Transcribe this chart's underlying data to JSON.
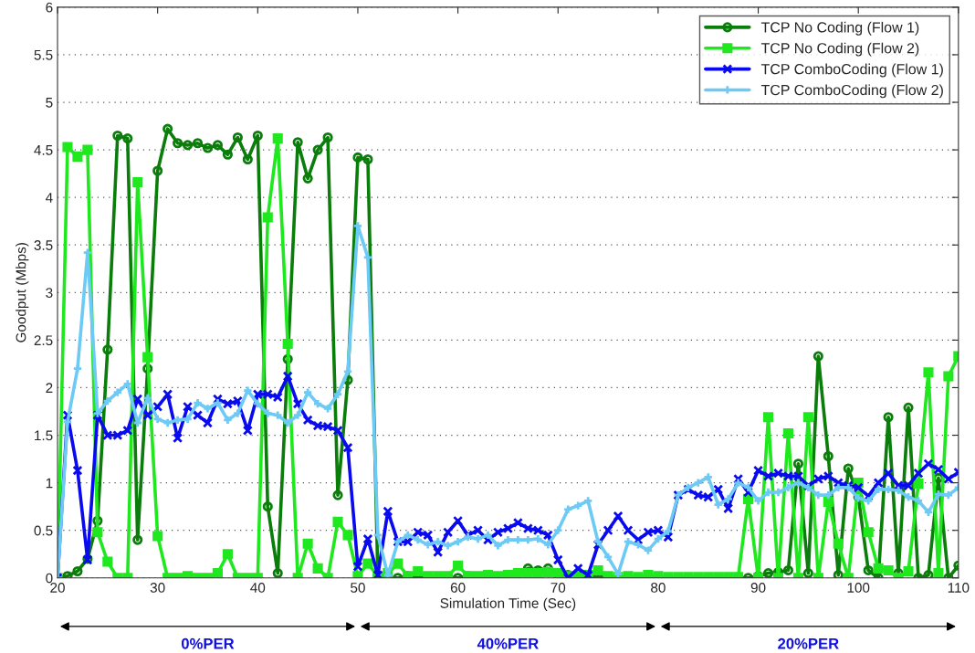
{
  "chart_data": {
    "type": "line",
    "xlabel": "Simulation Time (Sec)",
    "ylabel": "Goodput (Mbps)",
    "x": [
      20,
      21,
      22,
      23,
      24,
      25,
      26,
      27,
      28,
      29,
      30,
      31,
      32,
      33,
      34,
      35,
      36,
      37,
      38,
      39,
      40,
      41,
      42,
      43,
      44,
      45,
      46,
      47,
      48,
      49,
      50,
      51,
      52,
      53,
      54,
      55,
      56,
      57,
      58,
      59,
      60,
      61,
      62,
      63,
      64,
      65,
      66,
      67,
      68,
      69,
      70,
      71,
      72,
      73,
      74,
      75,
      76,
      77,
      78,
      79,
      80,
      81,
      82,
      83,
      84,
      85,
      86,
      87,
      88,
      89,
      90,
      91,
      92,
      93,
      94,
      95,
      96,
      97,
      98,
      99,
      100,
      101,
      102,
      103,
      104,
      105,
      106,
      107,
      108,
      109,
      110
    ],
    "series": [
      {
        "name": "TCP No Coding (Flow 1)",
        "color": "#0b7d0b",
        "marker": "circle",
        "values": [
          0,
          0.02,
          0.07,
          0.2,
          0.6,
          2.4,
          4.65,
          4.62,
          0.4,
          2.2,
          4.28,
          4.72,
          4.57,
          4.55,
          4.57,
          4.52,
          4.55,
          4.45,
          4.63,
          4.4,
          4.65,
          0.75,
          0.05,
          2.3,
          4.58,
          4.2,
          4.5,
          4.63,
          0.87,
          2.08,
          4.42,
          4.4,
          0.02,
          0,
          0,
          0.02,
          0,
          0.01,
          0,
          0.01,
          0,
          0.02,
          0,
          0,
          0.01,
          0.02,
          0.05,
          0.1,
          0.08,
          0.1,
          0.02,
          0.03,
          0.01,
          0,
          0.01,
          0,
          0,
          0,
          0,
          0.02,
          0,
          0,
          0,
          0,
          0,
          0,
          0,
          0,
          0,
          0,
          0.02,
          0.05,
          0.06,
          0.08,
          1.2,
          0.05,
          2.33,
          1.28,
          0.03,
          1.15,
          0.85,
          0.08,
          0,
          1.69,
          0.05,
          1.79,
          0,
          0.03,
          1.05,
          0,
          0.13
        ]
      },
      {
        "name": "TCP No Coding (Flow 2)",
        "color": "#1fe81f",
        "marker": "square",
        "values": [
          0,
          4.53,
          4.43,
          4.5,
          0.48,
          0.17,
          0,
          0,
          4.16,
          2.32,
          0.44,
          0,
          0,
          0.02,
          0,
          0,
          0.05,
          0.25,
          0,
          0,
          0,
          3.79,
          4.62,
          2.46,
          0,
          0.36,
          0.1,
          0,
          0.59,
          0.45,
          0.02,
          0.15,
          0.02,
          0.05,
          0.15,
          0.02,
          0.07,
          0.02,
          0.02,
          0.02,
          0.13,
          0.02,
          0.02,
          0.03,
          0.02,
          0.03,
          0.05,
          0.05,
          0.05,
          0.06,
          0.05,
          0.02,
          0.02,
          0.03,
          0.08,
          0.02,
          0.01,
          0.02,
          0.01,
          0.03,
          0.02,
          0.01,
          0.01,
          0.01,
          0.01,
          0.01,
          0.01,
          0.01,
          0.01,
          0.83,
          0,
          1.69,
          0,
          1.52,
          0,
          1.69,
          0,
          0.8,
          0.36,
          0,
          1.0,
          0.48,
          0.1,
          0.08,
          0,
          0.07,
          0.99,
          2.16,
          0.05,
          2.12,
          2.33
        ]
      },
      {
        "name": "TCP ComboCoding (Flow 1)",
        "color": "#0a0aef",
        "marker": "cross",
        "values": [
          0,
          1.71,
          1.13,
          0.19,
          1.71,
          1.5,
          1.5,
          1.55,
          1.88,
          1.71,
          1.8,
          1.93,
          1.47,
          1.8,
          1.71,
          1.63,
          1.88,
          1.83,
          1.86,
          1.55,
          1.93,
          1.93,
          1.9,
          2.12,
          1.83,
          1.66,
          1.6,
          1.59,
          1.55,
          1.37,
          0.12,
          0.41,
          0.03,
          0.7,
          0.38,
          0.38,
          0.48,
          0.45,
          0.27,
          0.48,
          0.6,
          0.45,
          0.5,
          0.4,
          0.48,
          0.52,
          0.58,
          0.52,
          0.5,
          0.45,
          0.19,
          0,
          0.1,
          0.03,
          0.35,
          0.5,
          0.65,
          0.5,
          0.4,
          0.48,
          0.5,
          0.43,
          0.87,
          0.93,
          0.87,
          0.85,
          0.93,
          0.73,
          1.04,
          0.9,
          1.13,
          1.07,
          1.1,
          1.07,
          1.07,
          0.97,
          1.04,
          1.07,
          1.0,
          0.97,
          0.95,
          0.86,
          1.0,
          1.1,
          0.97,
          0.97,
          1.1,
          1.2,
          1.14,
          1.04,
          1.11
        ]
      },
      {
        "name": "TCP ComboCoding (Flow 2)",
        "color": "#6ccaf5",
        "marker": "plus",
        "values": [
          0,
          1.64,
          2.2,
          3.42,
          1.73,
          1.86,
          1.95,
          2.04,
          1.63,
          1.89,
          1.67,
          1.63,
          1.66,
          1.67,
          1.84,
          1.78,
          1.84,
          1.66,
          1.73,
          1.97,
          1.83,
          1.73,
          1.71,
          1.63,
          1.71,
          1.95,
          1.83,
          1.78,
          1.93,
          2.17,
          3.7,
          3.37,
          0.45,
          0.03,
          0.38,
          0.45,
          0.4,
          0.35,
          0.38,
          0.34,
          0.38,
          0.43,
          0.41,
          0.45,
          0.34,
          0.4,
          0.4,
          0.4,
          0.41,
          0.35,
          0.5,
          0.72,
          0.76,
          0.81,
          0.38,
          0.22,
          0.04,
          0.38,
          0.35,
          0.29,
          0.41,
          0.49,
          0.87,
          0.95,
          1.0,
          1.06,
          0.77,
          0.83,
          1.0,
          0.95,
          0.81,
          0.9,
          0.9,
          0.95,
          1.0,
          0.95,
          0.87,
          0.87,
          0.95,
          0.95,
          0.84,
          0.81,
          0.93,
          0.93,
          0.92,
          0.85,
          0.81,
          0.69,
          0.88,
          0.87,
          0.95
        ]
      }
    ],
    "xlim": [
      20,
      110
    ],
    "xticks": [
      20,
      30,
      40,
      50,
      60,
      70,
      80,
      90,
      100,
      110
    ],
    "ylim": [
      0,
      6
    ],
    "yticks": [
      0,
      0.5,
      1,
      1.5,
      2,
      2.5,
      3,
      3.5,
      4,
      4.5,
      5,
      5.5,
      6
    ],
    "grid": "y",
    "legend": "top right",
    "line_style": "solid",
    "annotations": [
      "0%PER",
      "40%PER",
      "20%PER"
    ]
  }
}
